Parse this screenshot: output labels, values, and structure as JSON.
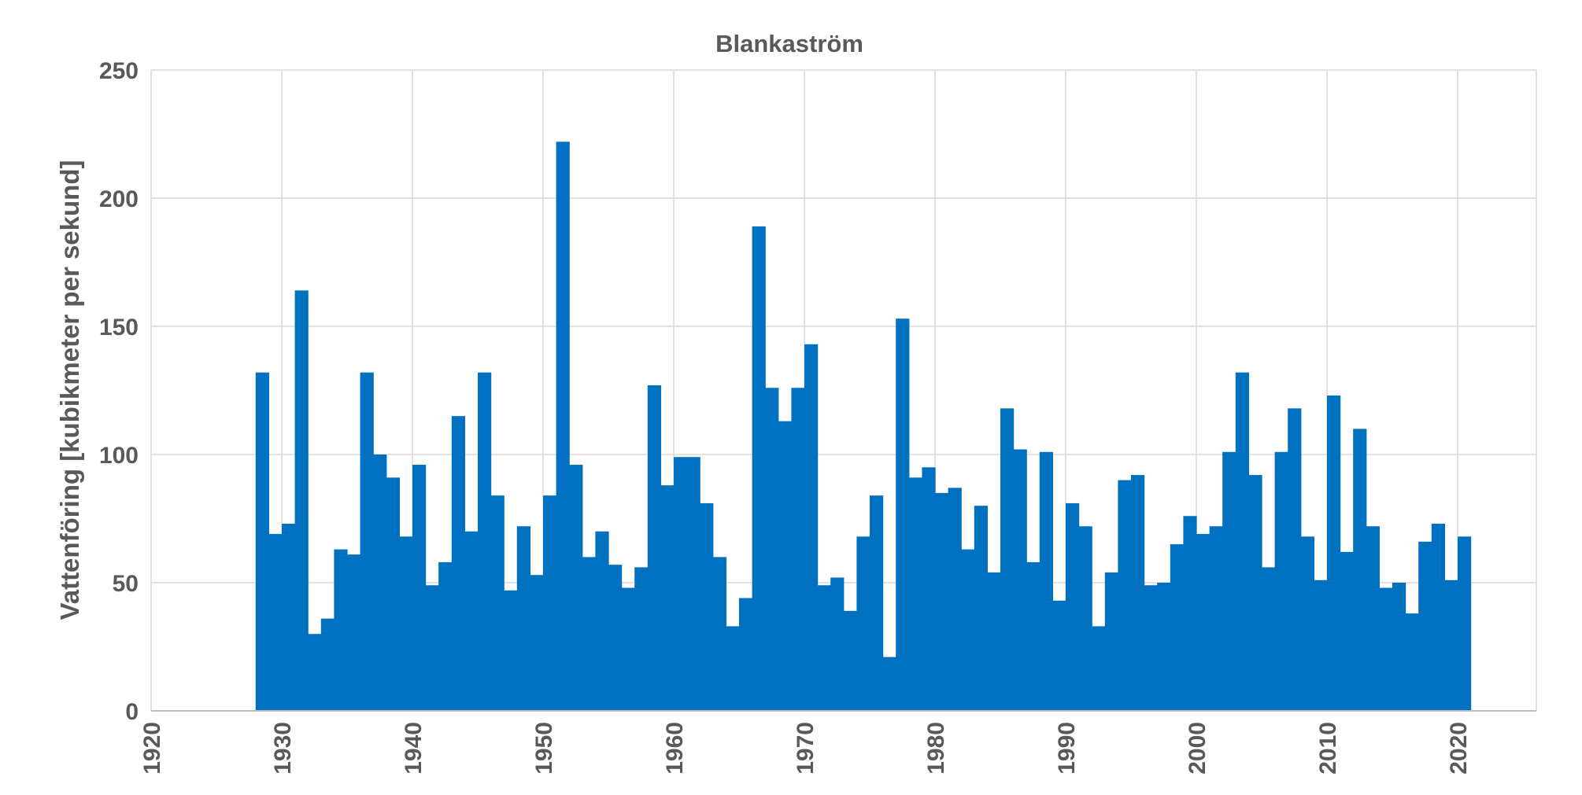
{
  "chart_data": {
    "type": "bar",
    "title": "Blankaström",
    "xlabel": "",
    "ylabel": "Vattenföring [kubikmeter per sekund]",
    "xlim": [
      1920,
      2026
    ],
    "ylim": [
      0,
      250
    ],
    "xticks": [
      1920,
      1930,
      1940,
      1950,
      1960,
      1970,
      1980,
      1990,
      2000,
      2010,
      2020
    ],
    "yticks": [
      0,
      50,
      100,
      150,
      200,
      250
    ],
    "grid": true,
    "color": "#0070C0",
    "x": [
      1928,
      1929,
      1930,
      1931,
      1932,
      1933,
      1934,
      1935,
      1936,
      1937,
      1938,
      1939,
      1940,
      1941,
      1942,
      1943,
      1944,
      1945,
      1946,
      1947,
      1948,
      1949,
      1950,
      1951,
      1952,
      1953,
      1954,
      1955,
      1956,
      1957,
      1958,
      1959,
      1960,
      1961,
      1962,
      1963,
      1964,
      1965,
      1966,
      1967,
      1968,
      1969,
      1970,
      1971,
      1972,
      1973,
      1974,
      1975,
      1976,
      1977,
      1978,
      1979,
      1980,
      1981,
      1982,
      1983,
      1984,
      1985,
      1986,
      1987,
      1988,
      1989,
      1990,
      1991,
      1992,
      1993,
      1994,
      1995,
      1996,
      1997,
      1998,
      1999,
      2000,
      2001,
      2002,
      2003,
      2004,
      2005,
      2006,
      2007,
      2008,
      2009,
      2010,
      2011,
      2012,
      2013,
      2014,
      2015,
      2016,
      2017,
      2018,
      2019,
      2020
    ],
    "values": [
      132,
      69,
      73,
      164,
      30,
      36,
      63,
      61,
      132,
      100,
      91,
      68,
      96,
      49,
      58,
      115,
      70,
      132,
      84,
      47,
      72,
      53,
      84,
      222,
      96,
      60,
      70,
      57,
      48,
      56,
      127,
      88,
      99,
      99,
      81,
      60,
      33,
      44,
      189,
      126,
      113,
      126,
      143,
      49,
      52,
      39,
      68,
      84,
      21,
      153,
      91,
      95,
      85,
      87,
      63,
      80,
      54,
      118,
      102,
      58,
      101,
      43,
      81,
      72,
      33,
      54,
      90,
      92,
      49,
      50,
      65,
      76,
      69,
      72,
      101,
      132,
      92,
      56,
      101,
      118,
      68,
      51,
      123,
      62,
      110,
      72,
      48,
      50,
      38,
      66,
      73,
      51,
      68
    ]
  }
}
